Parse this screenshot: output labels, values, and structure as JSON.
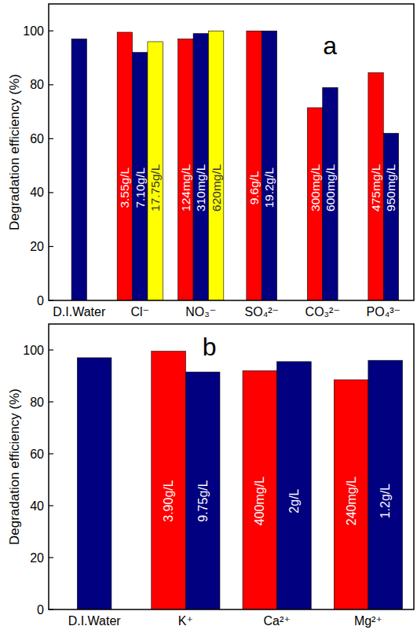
{
  "chart_data": [
    {
      "type": "bar",
      "title": "a",
      "ylabel": "Degradation efficiency (%)",
      "categories": [
        "D.I.Water",
        "Cl⁻",
        "NO₃⁻",
        "SO₄²⁻",
        "CO₃²⁻",
        "PO₄³⁻"
      ],
      "series": [
        {
          "color": "#ff0000",
          "values": [
            null,
            99.5,
            97,
            100,
            71.5,
            84.5
          ],
          "concentrations": [
            null,
            "3.55g/L",
            "124mg/L",
            "9.6g/L",
            "300mg/L",
            "475mg/L"
          ]
        },
        {
          "color": "#000080",
          "values": [
            97,
            92,
            99,
            100,
            79,
            62
          ],
          "concentrations": [
            null,
            "7.10g/L",
            "310mg/L",
            "19.2g/L",
            "600mg/L",
            "950mg/L"
          ]
        },
        {
          "color": "#ffff00",
          "values": [
            null,
            96,
            100,
            null,
            null,
            null
          ],
          "concentrations": [
            null,
            "17.75g/L",
            "620mg/L",
            null,
            null,
            null
          ]
        }
      ],
      "ylim": [
        0,
        110
      ],
      "yticks": [
        0,
        20,
        40,
        60,
        80,
        100
      ],
      "grid": false
    },
    {
      "type": "bar",
      "title": "b",
      "ylabel": "Degradation efficiency (%)",
      "categories": [
        "D.I.Water",
        "K⁺",
        "Ca²⁺",
        "Mg²⁺"
      ],
      "series": [
        {
          "color": "#ff0000",
          "values": [
            null,
            99.5,
            92,
            88.5
          ],
          "concentrations": [
            null,
            "3.90g/L",
            "400mg/L",
            "240mg/L"
          ]
        },
        {
          "color": "#000080",
          "values": [
            97,
            91.5,
            95.5,
            96
          ],
          "concentrations": [
            null,
            "9.75g/L",
            "2g/L",
            "1.2g/L"
          ]
        }
      ],
      "ylim": [
        0,
        110
      ],
      "yticks": [
        0,
        20,
        40,
        60,
        80,
        100
      ],
      "grid": false
    }
  ]
}
